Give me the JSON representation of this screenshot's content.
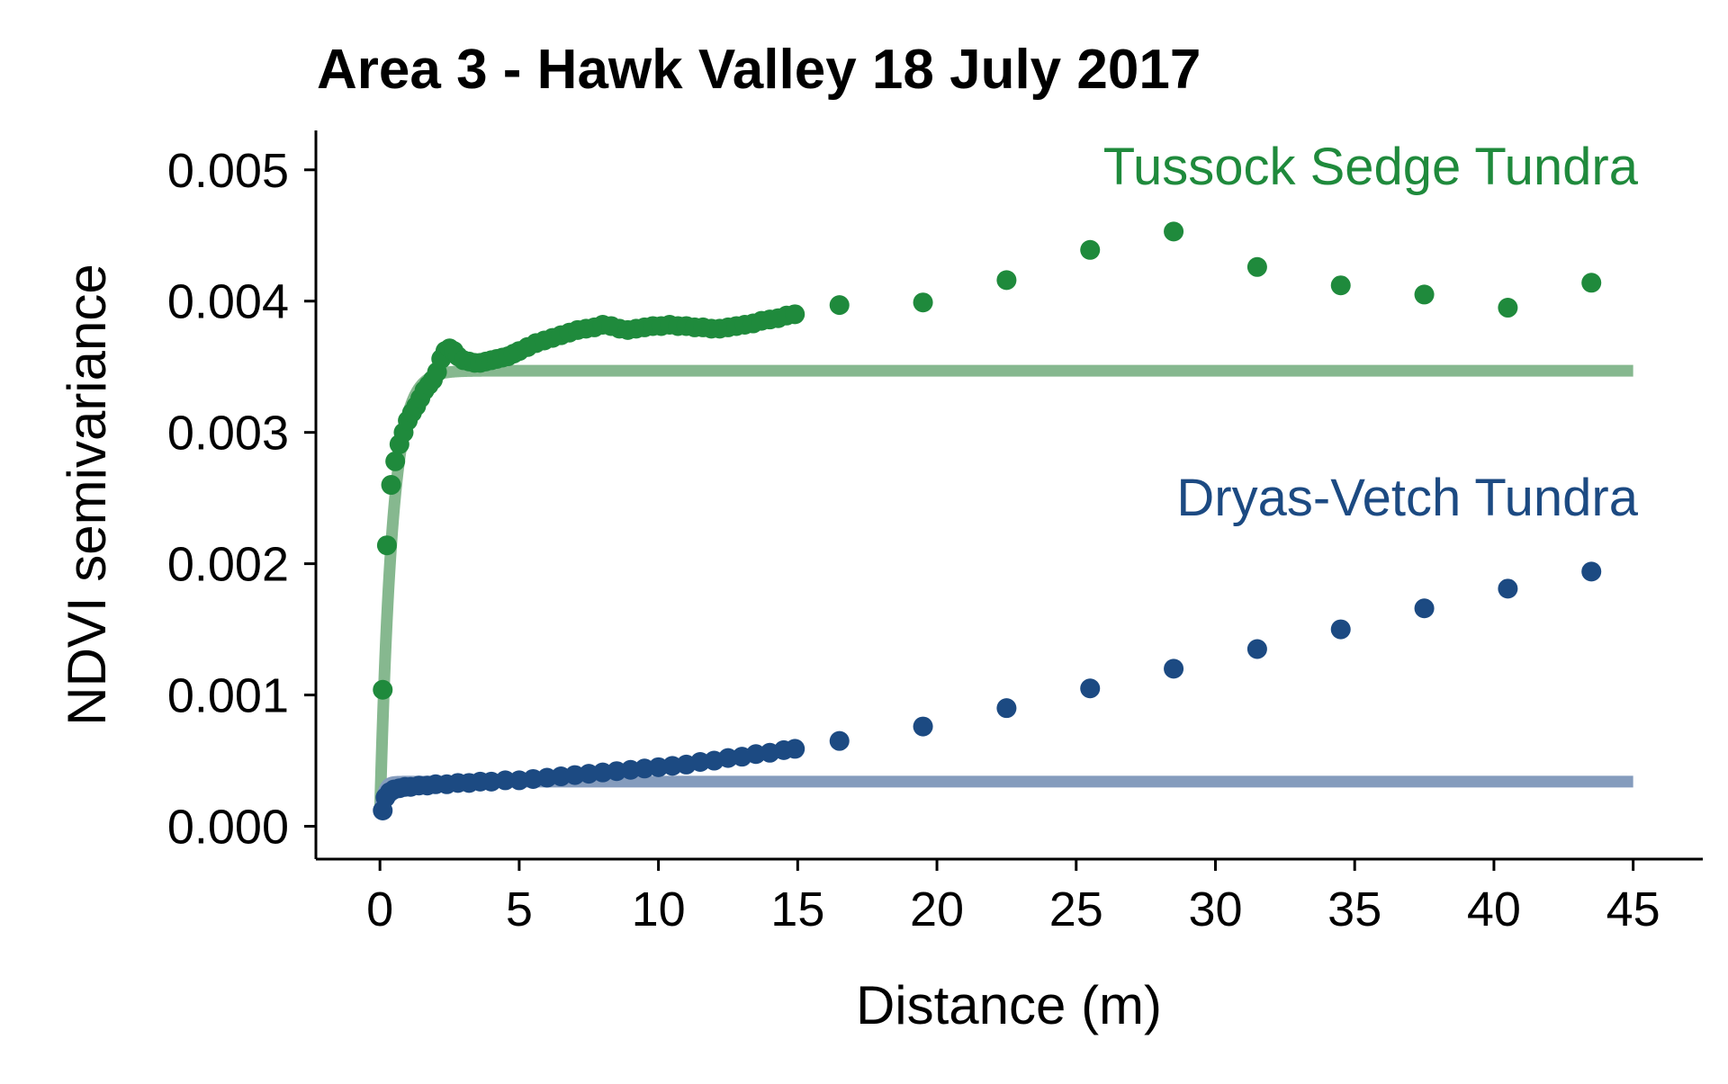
{
  "chart_data": {
    "type": "scatter",
    "title": "Area 3 - Hawk Valley 18 July 2017",
    "xlabel": "Distance (m)",
    "ylabel": "NDVI semivariance",
    "xlim": [
      -2.3,
      47.5
    ],
    "ylim": [
      -0.00025,
      0.0053
    ],
    "xticks": [
      0,
      5,
      10,
      15,
      20,
      25,
      30,
      35,
      40,
      45
    ],
    "xtick_labels": [
      "0",
      "5",
      "10",
      "15",
      "20",
      "25",
      "30",
      "35",
      "40",
      "45"
    ],
    "yticks": [
      0,
      0.001,
      0.002,
      0.003,
      0.004,
      0.005
    ],
    "ytick_labels": [
      "0.000",
      "0.001",
      "0.002",
      "0.003",
      "0.004",
      "0.005"
    ],
    "grid": false,
    "legend": "direct labels at right of plot",
    "series": [
      {
        "name": "Tussock Sedge Tundra",
        "color": "#1f8a3c",
        "fit_color": "#86b88f",
        "sill": 0.00347,
        "nugget": 0.0001,
        "range_m": 1.3,
        "fit_xmax": 45,
        "points": [
          [
            0.1,
            0.00104
          ],
          [
            0.25,
            0.00214
          ],
          [
            0.4,
            0.0026
          ],
          [
            0.55,
            0.00278
          ],
          [
            0.7,
            0.00291
          ],
          [
            0.85,
            0.003
          ],
          [
            1.0,
            0.00309
          ],
          [
            1.15,
            0.00315
          ],
          [
            1.3,
            0.0032
          ],
          [
            1.45,
            0.00326
          ],
          [
            1.6,
            0.00332
          ],
          [
            1.75,
            0.00336
          ],
          [
            1.9,
            0.0034
          ],
          [
            2.05,
            0.00346
          ],
          [
            2.2,
            0.00356
          ],
          [
            2.35,
            0.00362
          ],
          [
            2.5,
            0.00364
          ],
          [
            2.65,
            0.00362
          ],
          [
            2.8,
            0.00358
          ],
          [
            3.0,
            0.00355
          ],
          [
            3.2,
            0.00354
          ],
          [
            3.4,
            0.00353
          ],
          [
            3.6,
            0.00353
          ],
          [
            3.8,
            0.00354
          ],
          [
            4.0,
            0.00355
          ],
          [
            4.2,
            0.00356
          ],
          [
            4.4,
            0.00357
          ],
          [
            4.6,
            0.00358
          ],
          [
            4.8,
            0.0036
          ],
          [
            5.0,
            0.00362
          ],
          [
            5.3,
            0.00365
          ],
          [
            5.6,
            0.00368
          ],
          [
            5.9,
            0.0037
          ],
          [
            6.2,
            0.00372
          ],
          [
            6.5,
            0.00374
          ],
          [
            6.8,
            0.00376
          ],
          [
            7.1,
            0.00378
          ],
          [
            7.4,
            0.00379
          ],
          [
            7.7,
            0.0038
          ],
          [
            8.0,
            0.00382
          ],
          [
            8.3,
            0.00381
          ],
          [
            8.6,
            0.00379
          ],
          [
            8.9,
            0.00378
          ],
          [
            9.2,
            0.00379
          ],
          [
            9.5,
            0.0038
          ],
          [
            9.8,
            0.00381
          ],
          [
            10.1,
            0.00381
          ],
          [
            10.4,
            0.00382
          ],
          [
            10.7,
            0.00381
          ],
          [
            11.0,
            0.00381
          ],
          [
            11.3,
            0.0038
          ],
          [
            11.6,
            0.0038
          ],
          [
            11.9,
            0.00379
          ],
          [
            12.2,
            0.00379
          ],
          [
            12.5,
            0.0038
          ],
          [
            12.8,
            0.00381
          ],
          [
            13.1,
            0.00382
          ],
          [
            13.4,
            0.00383
          ],
          [
            13.7,
            0.00385
          ],
          [
            14.0,
            0.00386
          ],
          [
            14.3,
            0.00387
          ],
          [
            14.6,
            0.00389
          ],
          [
            14.9,
            0.0039
          ],
          [
            16.5,
            0.00397
          ],
          [
            19.5,
            0.00399
          ],
          [
            22.5,
            0.00416
          ],
          [
            25.5,
            0.00439
          ],
          [
            28.5,
            0.00453
          ],
          [
            31.5,
            0.00426
          ],
          [
            34.5,
            0.00412
          ],
          [
            37.5,
            0.00405
          ],
          [
            40.5,
            0.00395
          ],
          [
            43.5,
            0.00414
          ]
        ]
      },
      {
        "name": "Dryas-Vetch Tundra",
        "color": "#1c4a82",
        "fit_color": "#859cbd",
        "sill": 0.00034,
        "nugget": 0.0001,
        "range_m": 0.35,
        "fit_xmax": 45,
        "points": [
          [
            0.1,
            0.00012
          ],
          [
            0.2,
            0.00022
          ],
          [
            0.35,
            0.00026
          ],
          [
            0.5,
            0.00028
          ],
          [
            0.7,
            0.00029
          ],
          [
            0.9,
            0.0003
          ],
          [
            1.1,
            0.0003
          ],
          [
            1.4,
            0.00031
          ],
          [
            1.7,
            0.00031
          ],
          [
            2.0,
            0.00032
          ],
          [
            2.4,
            0.00032
          ],
          [
            2.8,
            0.00033
          ],
          [
            3.2,
            0.00033
          ],
          [
            3.6,
            0.00034
          ],
          [
            4.0,
            0.00034
          ],
          [
            4.5,
            0.00035
          ],
          [
            5.0,
            0.00035
          ],
          [
            5.5,
            0.00036
          ],
          [
            6.0,
            0.00037
          ],
          [
            6.5,
            0.00038
          ],
          [
            7.0,
            0.00039
          ],
          [
            7.5,
            0.0004
          ],
          [
            8.0,
            0.00041
          ],
          [
            8.5,
            0.00042
          ],
          [
            9.0,
            0.00043
          ],
          [
            9.5,
            0.00044
          ],
          [
            10.0,
            0.00045
          ],
          [
            10.5,
            0.00046
          ],
          [
            11.0,
            0.00047
          ],
          [
            11.5,
            0.00049
          ],
          [
            12.0,
            0.0005
          ],
          [
            12.5,
            0.00052
          ],
          [
            13.0,
            0.00053
          ],
          [
            13.5,
            0.00055
          ],
          [
            14.0,
            0.00056
          ],
          [
            14.5,
            0.00058
          ],
          [
            14.9,
            0.00059
          ],
          [
            16.5,
            0.00065
          ],
          [
            19.5,
            0.00076
          ],
          [
            22.5,
            0.0009
          ],
          [
            25.5,
            0.00105
          ],
          [
            28.5,
            0.0012
          ],
          [
            31.5,
            0.00135
          ],
          [
            34.5,
            0.0015
          ],
          [
            37.5,
            0.00166
          ],
          [
            40.5,
            0.00181
          ],
          [
            43.5,
            0.00194
          ]
        ]
      }
    ]
  }
}
